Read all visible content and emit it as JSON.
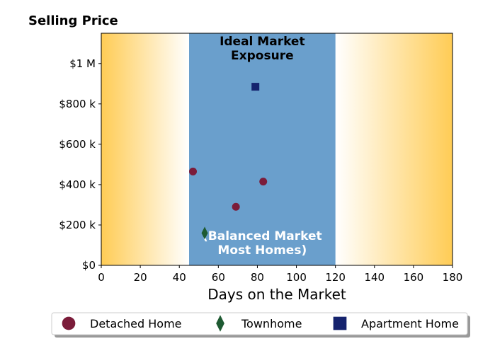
{
  "chart_data": {
    "type": "scatter",
    "title": "Selling Price",
    "xlabel": "Days on the Market",
    "ylabel": "",
    "xlim": [
      0,
      180
    ],
    "ylim": [
      0,
      1150000
    ],
    "x_ticks": [
      0,
      20,
      40,
      60,
      80,
      100,
      120,
      140,
      160,
      180
    ],
    "x_tick_labels": [
      "0",
      "20",
      "40",
      "60",
      "80",
      "100",
      "120",
      "140",
      "160",
      "180"
    ],
    "y_ticks": [
      0,
      200000,
      400000,
      600000,
      800000,
      1000000
    ],
    "y_tick_labels": [
      "$0",
      "$200 k",
      "$400 k",
      "$600 k",
      "$800 k",
      "$1 M"
    ],
    "grid": false,
    "background": {
      "gradient_color": "#ffcc55",
      "ideal_band": {
        "x_range": [
          45,
          120
        ],
        "color": "#6a9fcc",
        "label_top": [
          "Ideal Market",
          "Exposure"
        ],
        "label_bottom": [
          "(Balanced Market",
          "Most Homes)"
        ]
      }
    },
    "series": [
      {
        "name": "Detached Home",
        "marker": "circle",
        "color": "#7b1c3a",
        "points": [
          {
            "x": 47,
            "y": 465000
          },
          {
            "x": 69,
            "y": 290000
          },
          {
            "x": 83,
            "y": 415000
          }
        ]
      },
      {
        "name": "Townhome",
        "marker": "diamond",
        "color": "#1e5a32",
        "points": [
          {
            "x": 53,
            "y": 160000
          }
        ]
      },
      {
        "name": "Apartment Home",
        "marker": "square",
        "color": "#15236e",
        "points": [
          {
            "x": 79,
            "y": 885000
          }
        ]
      }
    ],
    "legend": {
      "position": "bottom"
    }
  }
}
